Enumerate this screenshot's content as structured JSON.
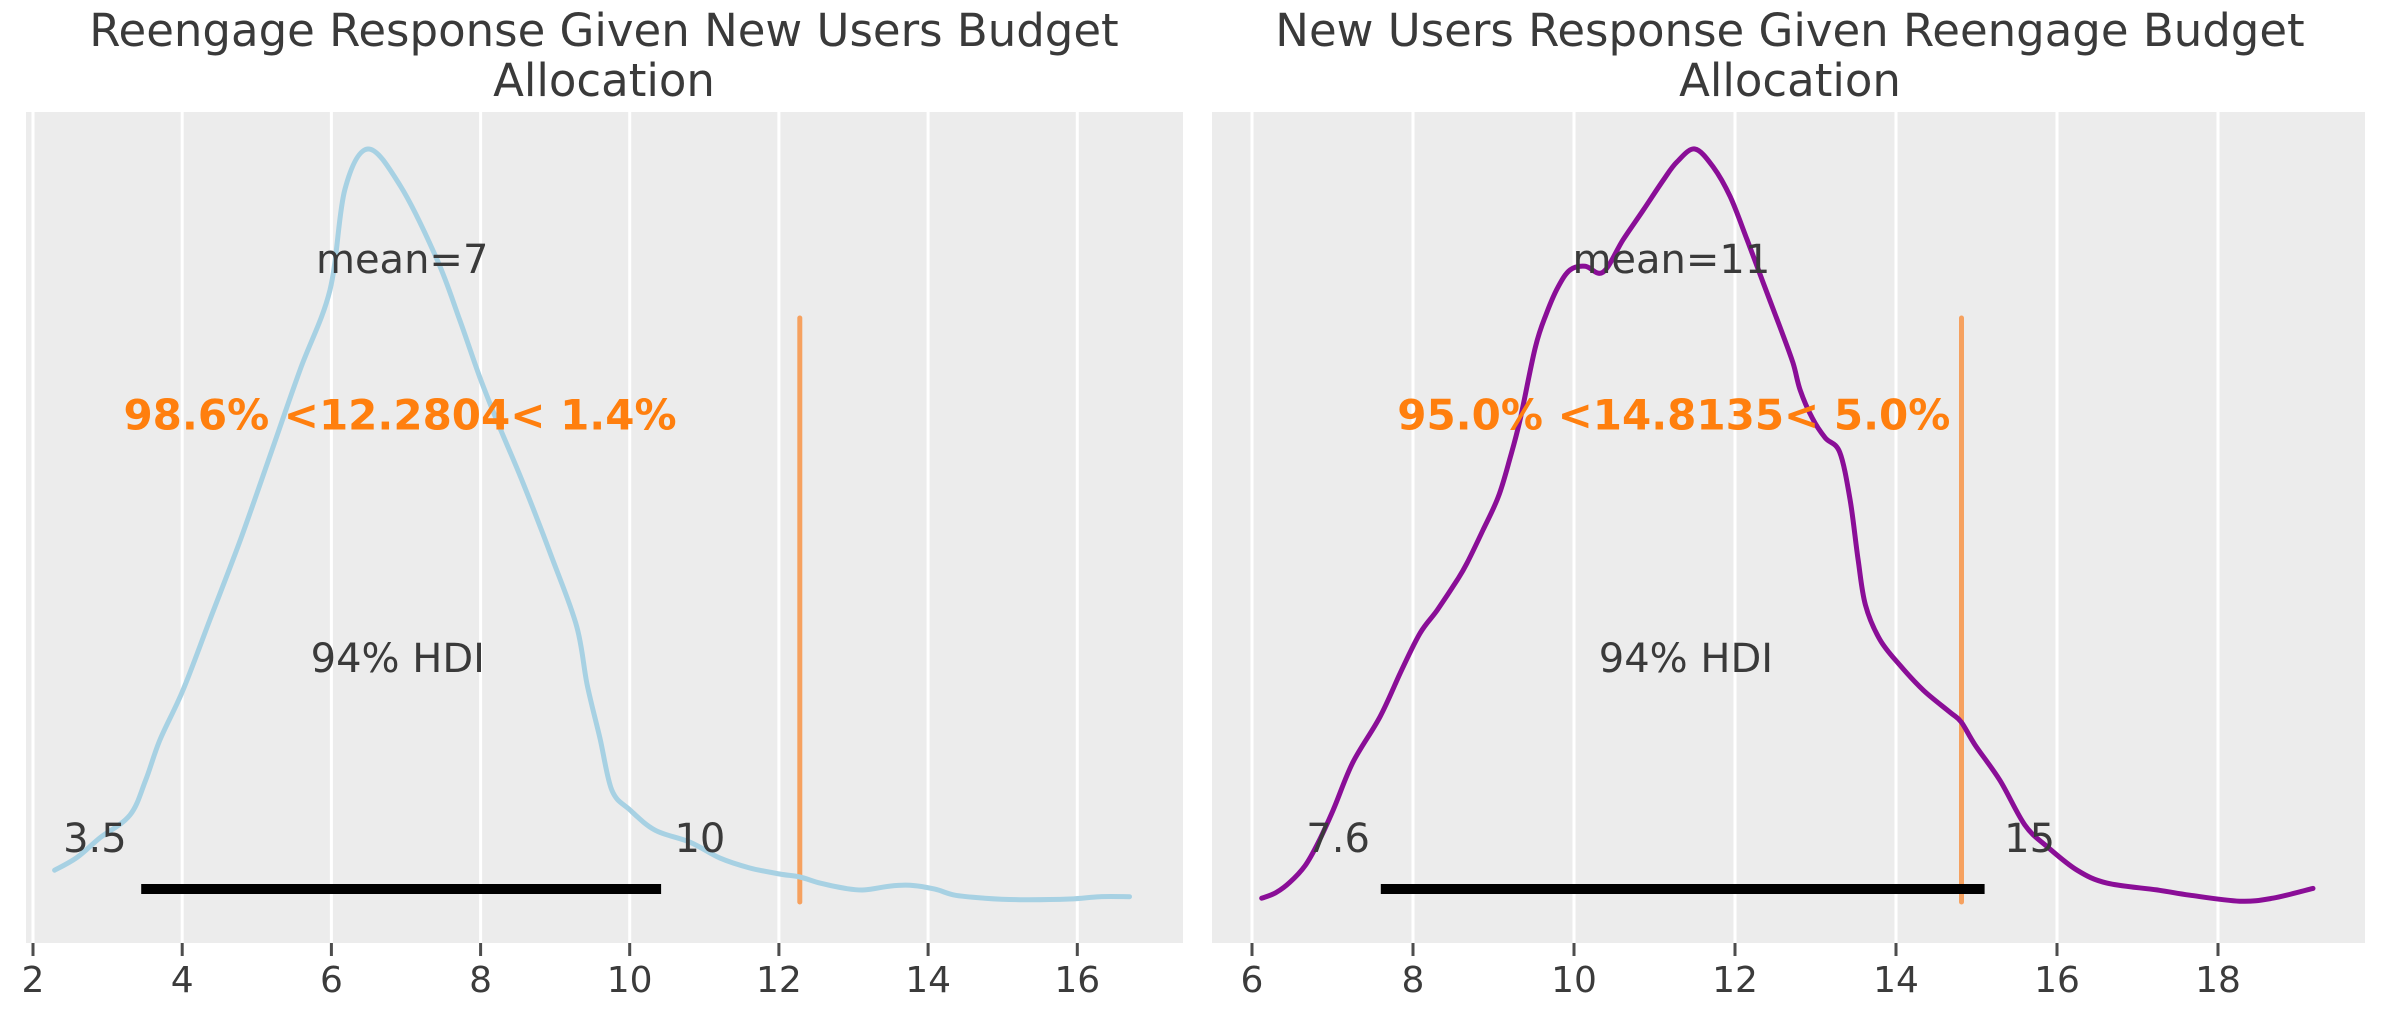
{
  "figure": {
    "background": "#ffffff",
    "panel_background": "#ececec",
    "grid_color": "#ffffff",
    "title_color": "#3a3a3a",
    "annotation_color": "#3a3a3a",
    "tick_mark_color": "#4d4d4d",
    "tick_label_color": "#3b3b3b",
    "hdi_bar_color": "#000000",
    "ref_line_color": "#f6a15f",
    "ref_text_color": "#ff7f0e"
  },
  "chart_data": [
    {
      "type": "line",
      "subtype": "posterior-kde",
      "title": "Reengage Response Given New Users Budget Allocation",
      "xlabel": "",
      "ylabel": "",
      "grid": true,
      "legend": "none",
      "xlim": [
        1.906,
        17.417
      ],
      "x_ticks": [
        2,
        4,
        6,
        8,
        10,
        12,
        14,
        16
      ],
      "mean": {
        "value": 7,
        "label": "mean=7",
        "label_x": 6.95
      },
      "hdi": {
        "prob": 0.94,
        "label": "94% HDI",
        "lower": 3.5,
        "upper": 10,
        "lower_label": "3.5",
        "upper_label": "10",
        "bar_from": 3.45,
        "bar_to": 10.42,
        "label_x": 6.89,
        "lower_label_x": 2.83,
        "upper_label_x": 10.94
      },
      "ref_val": {
        "value": 12.2804,
        "label": "98.6% <12.2804< 1.4%",
        "pct_below": "98.6%",
        "pct_above": "1.4%",
        "text_x": 6.92
      },
      "series": [
        {
          "name": "posterior density",
          "color": "#a7d1e3",
          "stroke_width": 5,
          "points": [
            [
              2.29,
              0.046
            ],
            [
              2.59,
              0.063
            ],
            [
              2.9,
              0.089
            ],
            [
              3.3,
              0.119
            ],
            [
              3.51,
              0.165
            ],
            [
              3.7,
              0.218
            ],
            [
              4.01,
              0.284
            ],
            [
              4.37,
              0.377
            ],
            [
              4.78,
              0.483
            ],
            [
              5.18,
              0.595
            ],
            [
              5.58,
              0.708
            ],
            [
              5.98,
              0.813
            ],
            [
              6.18,
              0.946
            ],
            [
              6.49,
              1.0
            ],
            [
              6.92,
              0.952
            ],
            [
              7.42,
              0.853
            ],
            [
              7.72,
              0.774
            ],
            [
              7.99,
              0.698
            ],
            [
              8.23,
              0.638
            ],
            [
              8.57,
              0.558
            ],
            [
              8.97,
              0.456
            ],
            [
              9.29,
              0.368
            ],
            [
              9.43,
              0.291
            ],
            [
              9.6,
              0.221
            ],
            [
              9.76,
              0.152
            ],
            [
              10.0,
              0.126
            ],
            [
              10.34,
              0.099
            ],
            [
              10.81,
              0.083
            ],
            [
              11.21,
              0.062
            ],
            [
              11.61,
              0.049
            ],
            [
              12.01,
              0.041
            ],
            [
              12.28,
              0.037
            ],
            [
              12.55,
              0.029
            ],
            [
              12.89,
              0.022
            ],
            [
              13.15,
              0.02
            ],
            [
              13.49,
              0.025
            ],
            [
              13.76,
              0.026
            ],
            [
              14.09,
              0.021
            ],
            [
              14.36,
              0.013
            ],
            [
              14.76,
              0.009
            ],
            [
              15.23,
              0.007
            ],
            [
              15.9,
              0.008
            ],
            [
              16.3,
              0.011
            ],
            [
              16.7,
              0.011
            ]
          ]
        }
      ]
    },
    {
      "type": "line",
      "subtype": "posterior-kde",
      "title": "New Users Response Given Reengage Budget Allocation",
      "xlabel": "",
      "ylabel": "",
      "grid": true,
      "legend": "none",
      "xlim": [
        5.503,
        19.826
      ],
      "x_ticks": [
        6,
        8,
        10,
        12,
        14,
        16,
        18
      ],
      "mean": {
        "value": 11,
        "label": "mean=11",
        "label_x": 11.21
      },
      "hdi": {
        "prob": 0.94,
        "label": "94% HDI",
        "lower": 7.6,
        "upper": 15,
        "lower_label": "7.6",
        "upper_label": "15",
        "bar_from": 7.6,
        "bar_to": 15.1,
        "label_x": 11.39,
        "lower_label_x": 7.07,
        "upper_label_x": 15.66
      },
      "ref_val": {
        "value": 14.8135,
        "label": "95.0% <14.8135< 5.0%",
        "pct_below": "95.0%",
        "pct_above": "5.0%",
        "text_x": 11.24
      },
      "series": [
        {
          "name": "posterior density",
          "color": "#8a0e97",
          "stroke_width": 5,
          "points": [
            [
              6.12,
              0.009
            ],
            [
              6.29,
              0.016
            ],
            [
              6.47,
              0.03
            ],
            [
              6.66,
              0.052
            ],
            [
              6.82,
              0.082
            ],
            [
              7.01,
              0.126
            ],
            [
              7.25,
              0.188
            ],
            [
              7.59,
              0.249
            ],
            [
              7.86,
              0.311
            ],
            [
              8.09,
              0.36
            ],
            [
              8.3,
              0.39
            ],
            [
              8.55,
              0.43
            ],
            [
              8.67,
              0.452
            ],
            [
              8.87,
              0.496
            ],
            [
              9.06,
              0.54
            ],
            [
              9.2,
              0.589
            ],
            [
              9.33,
              0.642
            ],
            [
              9.52,
              0.738
            ],
            [
              9.66,
              0.783
            ],
            [
              9.8,
              0.817
            ],
            [
              9.95,
              0.84
            ],
            [
              10.14,
              0.845
            ],
            [
              10.36,
              0.837
            ],
            [
              10.61,
              0.88
            ],
            [
              10.86,
              0.919
            ],
            [
              11.11,
              0.959
            ],
            [
              11.28,
              0.983
            ],
            [
              11.5,
              1.0
            ],
            [
              11.73,
              0.976
            ],
            [
              11.94,
              0.937
            ],
            [
              12.15,
              0.88
            ],
            [
              12.35,
              0.823
            ],
            [
              12.56,
              0.764
            ],
            [
              12.72,
              0.717
            ],
            [
              12.81,
              0.681
            ],
            [
              12.96,
              0.644
            ],
            [
              13.12,
              0.618
            ],
            [
              13.3,
              0.599
            ],
            [
              13.43,
              0.536
            ],
            [
              13.53,
              0.456
            ],
            [
              13.62,
              0.397
            ],
            [
              13.8,
              0.351
            ],
            [
              14.05,
              0.317
            ],
            [
              14.34,
              0.284
            ],
            [
              14.67,
              0.255
            ],
            [
              14.81,
              0.242
            ],
            [
              14.98,
              0.212
            ],
            [
              15.29,
              0.165
            ],
            [
              15.6,
              0.106
            ],
            [
              15.88,
              0.077
            ],
            [
              16.25,
              0.046
            ],
            [
              16.62,
              0.029
            ],
            [
              17.24,
              0.02
            ],
            [
              17.65,
              0.013
            ],
            [
              18.27,
              0.005
            ],
            [
              18.68,
              0.009
            ],
            [
              19.18,
              0.022
            ]
          ]
        }
      ]
    }
  ]
}
